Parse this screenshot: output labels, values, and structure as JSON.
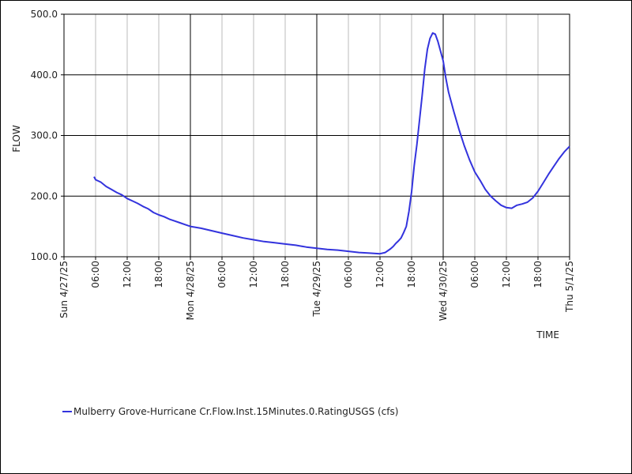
{
  "chart_data": {
    "type": "line",
    "xlabel": "TIME",
    "ylabel": "FLOW",
    "ylim": [
      100,
      500
    ],
    "xlim_hours": [
      0,
      96
    ],
    "y_ticks": [
      "500.0",
      "400.0",
      "300.0",
      "200.0",
      "100.0"
    ],
    "y_tick_values": [
      500,
      400,
      300,
      200,
      100
    ],
    "x_ticks": [
      {
        "hour": 0,
        "label": "Sun 4/27/25",
        "major": true
      },
      {
        "hour": 6,
        "label": "06:00",
        "major": false
      },
      {
        "hour": 12,
        "label": "12:00",
        "major": false
      },
      {
        "hour": 18,
        "label": "18:00",
        "major": false
      },
      {
        "hour": 24,
        "label": "Mon 4/28/25",
        "major": true
      },
      {
        "hour": 30,
        "label": "06:00",
        "major": false
      },
      {
        "hour": 36,
        "label": "12:00",
        "major": false
      },
      {
        "hour": 42,
        "label": "18:00",
        "major": false
      },
      {
        "hour": 48,
        "label": "Tue 4/29/25",
        "major": true
      },
      {
        "hour": 54,
        "label": "06:00",
        "major": false
      },
      {
        "hour": 60,
        "label": "12:00",
        "major": false
      },
      {
        "hour": 66,
        "label": "18:00",
        "major": false
      },
      {
        "hour": 72,
        "label": "Wed 4/30/25",
        "major": true
      },
      {
        "hour": 78,
        "label": "06:00",
        "major": false
      },
      {
        "hour": 84,
        "label": "12:00",
        "major": false
      },
      {
        "hour": 90,
        "label": "18:00",
        "major": false
      },
      {
        "hour": 96,
        "label": "Thu 5/1/25",
        "major": true
      }
    ],
    "grid": true,
    "legend_position": "bottom-left",
    "series": [
      {
        "name": "Mulberry Grove-Hurricane Cr.Flow.Inst.15Minutes.0.RatingUSGS (cfs)",
        "color": "#3333dd",
        "x": [
          5.7,
          6,
          7,
          8,
          9,
          10,
          11,
          12,
          13,
          14,
          15,
          16,
          17,
          18,
          19,
          20,
          21,
          22,
          23,
          24,
          26,
          28,
          30,
          32,
          34,
          36,
          38,
          40,
          42,
          44,
          46,
          48,
          50,
          52,
          54,
          56,
          58,
          60,
          61,
          62,
          62.5,
          63,
          63.5,
          64,
          64.5,
          65,
          65.5,
          66,
          66.5,
          67,
          67.5,
          68,
          68.5,
          69,
          69.5,
          70,
          70.5,
          71,
          72,
          72.5,
          73,
          74,
          75,
          76,
          77,
          78,
          79,
          80,
          81,
          82,
          83,
          84,
          85,
          86,
          87,
          88,
          89,
          90,
          91,
          92,
          93,
          94,
          95,
          96
        ],
        "y": [
          232,
          227,
          223,
          216,
          211,
          206,
          202,
          196,
          192,
          188,
          183,
          179,
          173,
          169,
          166,
          162,
          159,
          156,
          153,
          150,
          147,
          143,
          139,
          135,
          131,
          128,
          125,
          123,
          121,
          119,
          116,
          114,
          112,
          111,
          109,
          107,
          106,
          105,
          107,
          113,
          117,
          122,
          126,
          131,
          140,
          150,
          175,
          207,
          250,
          285,
          325,
          365,
          410,
          442,
          460,
          469,
          467,
          455,
          423,
          395,
          372,
          340,
          310,
          283,
          260,
          240,
          226,
          211,
          200,
          192,
          185,
          181,
          180,
          185,
          187,
          190,
          197,
          208,
          222,
          236,
          249,
          262,
          273,
          282
        ]
      }
    ]
  }
}
